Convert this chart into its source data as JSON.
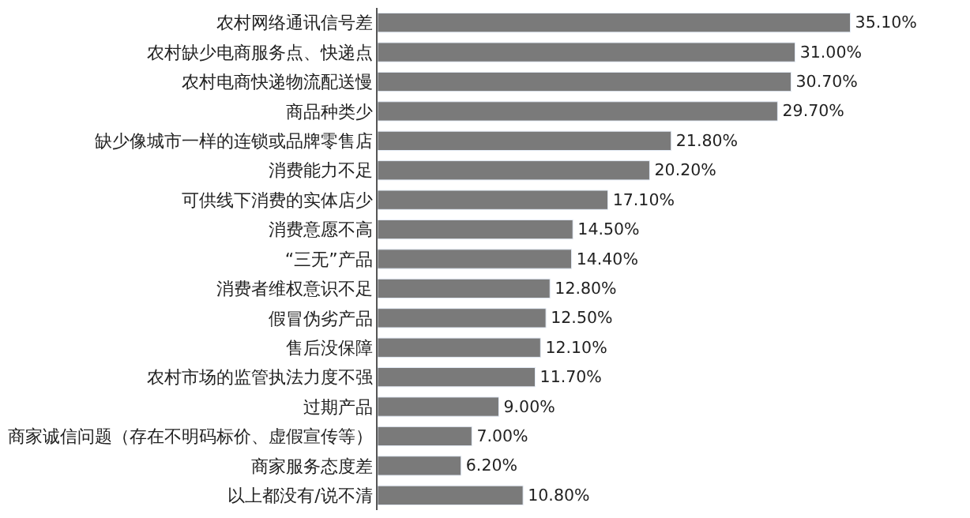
{
  "chart_data": {
    "type": "bar",
    "orientation": "horizontal",
    "categories": [
      "农村网络通讯信号差",
      "农村缺少电商服务点、快递点",
      "农村电商快递物流配送慢",
      "商品种类少",
      "缺少像城市一样的连锁或品牌零售店",
      "消费能力不足",
      "可供线下消费的实体店少",
      "消费意愿不高",
      "“三无”产品",
      "消费者维权意识不足",
      "假冒伪劣产品",
      "售后没保障",
      "农村市场的监管执法力度不强",
      "过期产品",
      "商家诚信问题（存在不明码标价、虚假宣传等）",
      "商家服务态度差",
      "以上都没有/说不清"
    ],
    "values": [
      35.1,
      31.0,
      30.7,
      29.7,
      21.8,
      20.2,
      17.1,
      14.5,
      14.4,
      12.8,
      12.5,
      12.1,
      11.7,
      9.0,
      7.0,
      6.2,
      10.8
    ],
    "value_labels": [
      "35.10%",
      "31.00%",
      "30.70%",
      "29.70%",
      "21.80%",
      "20.20%",
      "17.10%",
      "14.50%",
      "14.40%",
      "12.80%",
      "12.50%",
      "12.10%",
      "11.70%",
      "9.00%",
      "7.00%",
      "6.20%",
      "10.80%"
    ],
    "color": "#7a7a7a"
  }
}
